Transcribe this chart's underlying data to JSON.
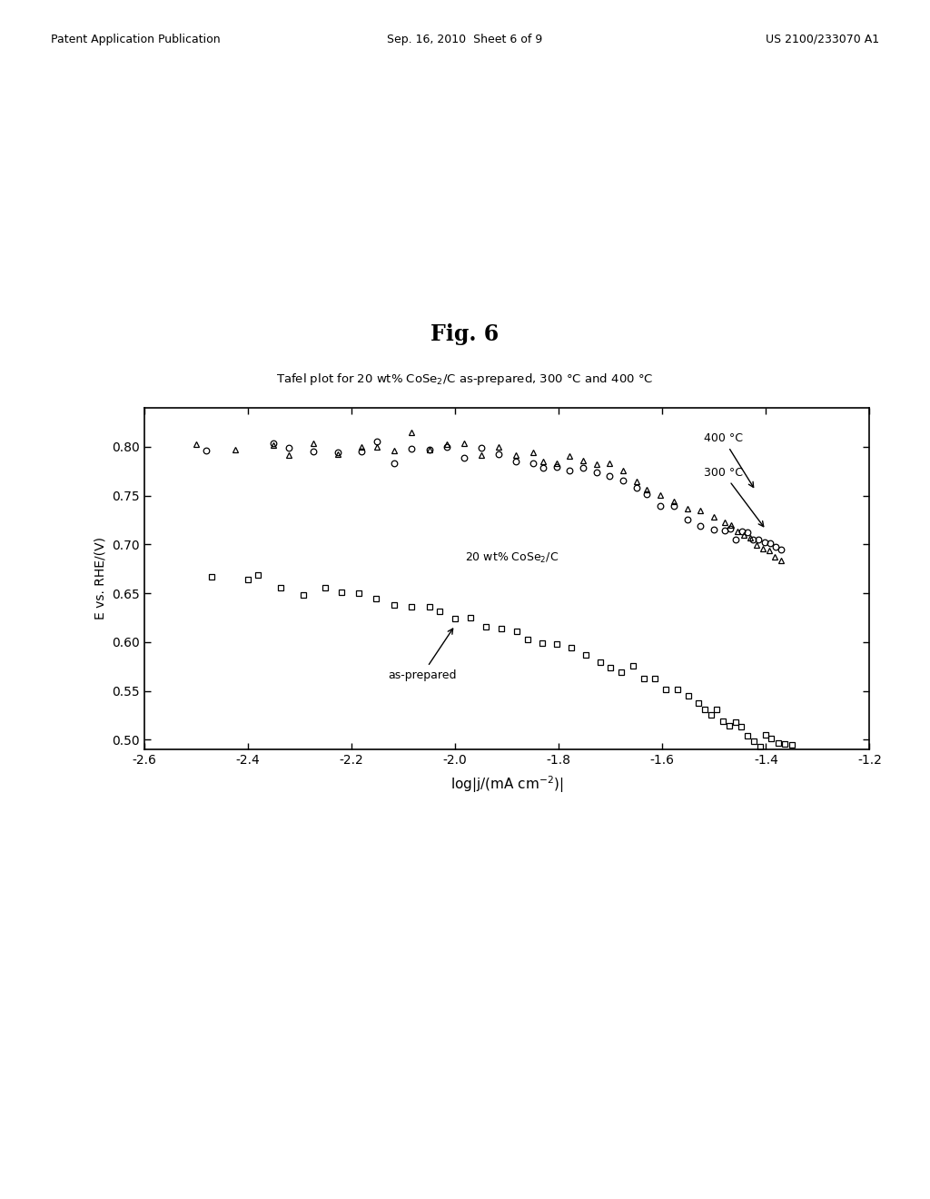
{
  "fig_label": "Fig. 6",
  "subtitle": "Tafel plot for 20 wt% CoSe$_2$/C as-prepared, 300 °C and 400 °C",
  "xlabel": "log|j/(mA cm$^{-2}$)|",
  "ylabel": "E vs. RHE/(V)",
  "xlim": [
    -2.6,
    -1.2
  ],
  "ylim": [
    0.49,
    0.84
  ],
  "xticks": [
    -2.6,
    -2.4,
    -2.2,
    -2.0,
    -1.8,
    -1.6,
    -1.4,
    -1.2
  ],
  "yticks": [
    0.5,
    0.55,
    0.6,
    0.65,
    0.7,
    0.75,
    0.8
  ],
  "header_left": "Patent Application Publication",
  "header_center": "Sep. 16, 2010  Sheet 6 of 9",
  "header_right": "US 2100/233070 A1",
  "background_color": "#ffffff",
  "plot_bg": "#ffffff",
  "ann_400_text": "400 °C",
  "ann_300_text": "300 °C",
  "ann_cose2_text": "20 wt% CoSe$_2$/C",
  "ann_asprepared_text": "as-prepared"
}
